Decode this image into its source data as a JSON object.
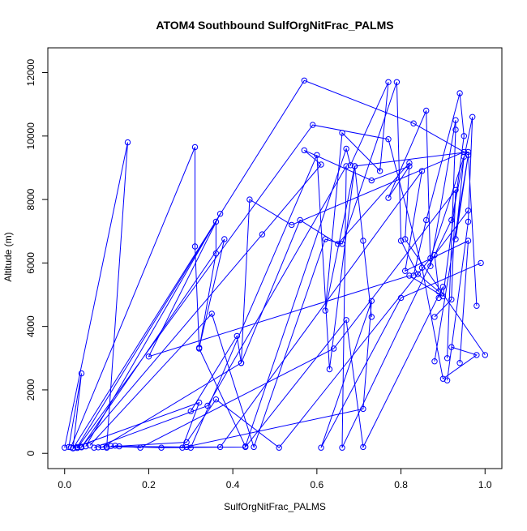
{
  "chart_data": {
    "type": "line",
    "title": "ATOM4 Southbound SulfOrgNitFrac_PALMS",
    "xlabel": "SulfOrgNitFrac_PALMS",
    "ylabel": "Altitude (m)",
    "xlim": [
      -0.04,
      1.04
    ],
    "ylim": [
      -480,
      12780
    ],
    "x_ticks": [
      0.0,
      0.2,
      0.4,
      0.6,
      0.8,
      1.0
    ],
    "x_tick_labels": [
      "0.0",
      "0.2",
      "0.4",
      "0.6",
      "0.8",
      "1.0"
    ],
    "y_ticks": [
      0,
      2000,
      4000,
      6000,
      8000,
      10000,
      12000
    ],
    "y_tick_labels": [
      "0",
      "2000",
      "4000",
      "6000",
      "8000",
      "10000",
      "12000"
    ],
    "grid": false,
    "series_color": "#0000ff",
    "marker": "open-circle",
    "series": [
      {
        "x": [
          0.0,
          0.15,
          0.1
        ],
        "y": [
          180,
          9800,
          180
        ]
      },
      {
        "x": [
          0.01,
          0.04,
          0.02,
          0.57,
          0.83,
          0.95,
          0.54,
          0.44,
          0.42,
          0.41,
          0.3
        ],
        "y": [
          200,
          2520,
          160,
          11750,
          10400,
          9500,
          7200,
          8000,
          2850,
          3700,
          1330
        ]
      },
      {
        "x": [
          0.015,
          0.31,
          0.31,
          0.32,
          0.38,
          0.04,
          0.03,
          0.59,
          0.77,
          0.85,
          0.9,
          0.98,
          0.92
        ],
        "y": [
          190,
          9650,
          6520,
          3330,
          6750,
          190,
          170,
          10350,
          9900,
          5850,
          2350,
          3100,
          3350
        ]
      },
      {
        "x": [
          0.03,
          0.36,
          0.36,
          0.32,
          0.43,
          0.67,
          0.68,
          0.77,
          0.75,
          0.66,
          0.62,
          0.69,
          0.71,
          0.73
        ],
        "y": [
          200,
          7300,
          6300,
          3300,
          220,
          9600,
          9080,
          11700,
          8900,
          10100,
          4500,
          9050,
          6700,
          4300
        ]
      },
      {
        "x": [
          0.04,
          0.47,
          0.61,
          0.57,
          0.73,
          0.82,
          0.77,
          0.86,
          0.87,
          0.93,
          0.93,
          0.91
        ],
        "y": [
          210,
          6900,
          9100,
          9550,
          8600,
          9050,
          8050,
          10800,
          5900,
          10500,
          10200,
          3000
        ]
      },
      {
        "x": [
          0.05,
          0.37,
          0.2,
          0.82,
          0.9,
          0.95,
          0.94,
          0.86,
          0.83
        ],
        "y": [
          220,
          7550,
          3050,
          5600,
          4950,
          10000,
          11350,
          7350,
          5600
        ]
      },
      {
        "x": [
          0.06,
          0.35,
          0.45,
          0.62,
          0.66,
          0.79,
          0.8,
          0.84,
          0.89,
          0.88,
          0.96
        ],
        "y": [
          250,
          4400,
          200,
          6750,
          6600,
          11700,
          6700,
          5650,
          5100,
          6250,
          7650
        ]
      },
      {
        "x": [
          0.07,
          0.34,
          0.67,
          0.66,
          0.92,
          0.97,
          0.96,
          0.91
        ],
        "y": [
          180,
          1500,
          9050,
          180,
          7350,
          10600,
          7300,
          2300
        ]
      },
      {
        "x": [
          0.08,
          0.29,
          0.36,
          0.51,
          0.87,
          0.95,
          0.93,
          0.96,
          0.88
        ],
        "y": [
          190,
          350,
          1700,
          180,
          6150,
          9350,
          6750,
          9400,
          2900
        ]
      },
      {
        "x": [
          0.09,
          0.42,
          0.56,
          0.65,
          0.82,
          0.81,
          1.0
        ],
        "y": [
          200,
          2850,
          7350,
          6600,
          9150,
          6750,
          3100
        ]
      },
      {
        "x": [
          0.1,
          0.3,
          0.6,
          0.63,
          0.69,
          0.96,
          0.98
        ],
        "y": [
          210,
          180,
          9400,
          2650,
          9050,
          9500,
          4650
        ]
      },
      {
        "x": [
          0.11,
          0.23,
          0.43,
          0.67,
          0.71,
          0.9,
          0.89
        ],
        "y": [
          230,
          180,
          200,
          4200,
          200,
          5250,
          4900
        ]
      },
      {
        "x": [
          0.12,
          0.18,
          0.64,
          0.93,
          0.92,
          0.88
        ],
        "y": [
          240,
          180,
          3300,
          8300,
          4850,
          4300
        ]
      },
      {
        "x": [
          0.13,
          0.29,
          0.37,
          0.85,
          0.81,
          0.96,
          0.94
        ],
        "y": [
          220,
          200,
          200,
          8900,
          5750,
          6700,
          2850
        ]
      },
      {
        "x": [
          0.02,
          0.32,
          0.28,
          0.71,
          0.73,
          0.61,
          0.8,
          0.99
        ],
        "y": [
          170,
          1600,
          180,
          1400,
          4800,
          180,
          4900,
          6000
        ]
      }
    ]
  }
}
